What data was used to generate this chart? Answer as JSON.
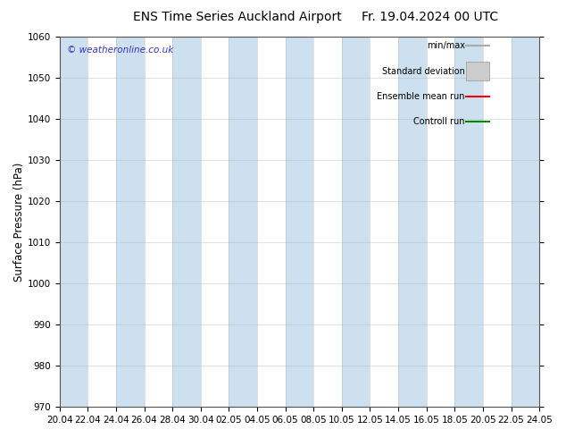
{
  "title_left": "ENS Time Series Auckland Airport",
  "title_right": "Fr. 19.04.2024 00 UTC",
  "ylabel": "Surface Pressure (hPa)",
  "ylim": [
    970,
    1060
  ],
  "yticks": [
    970,
    980,
    990,
    1000,
    1010,
    1020,
    1030,
    1040,
    1050,
    1060
  ],
  "x_start": 0,
  "x_end": 34,
  "xtick_labels": [
    "20.04",
    "22.04",
    "24.04",
    "26.04",
    "28.04",
    "30.04",
    "02.05",
    "04.05",
    "06.05",
    "08.05",
    "10.05",
    "12.05",
    "14.05",
    "16.05",
    "18.05",
    "20.05",
    "22.05",
    "24.05"
  ],
  "xtick_positions": [
    0,
    2,
    4,
    6,
    8,
    10,
    12,
    14,
    16,
    18,
    20,
    22,
    24,
    26,
    28,
    30,
    32,
    34
  ],
  "band_color": "#cce0f0",
  "background_color": "#ffffff",
  "watermark_text": "© weatheronline.co.uk",
  "watermark_color": "#3333cc",
  "legend_labels": [
    "min/max",
    "Standard deviation",
    "Ensemble mean run",
    "Controll run"
  ],
  "legend_line_colors": [
    "#aaaaaa",
    "#cccccc",
    "#ff0000",
    "#008800"
  ],
  "grid_color": "#aaaaaa",
  "title_fontsize": 10,
  "tick_fontsize": 7.5,
  "ylabel_fontsize": 8.5
}
